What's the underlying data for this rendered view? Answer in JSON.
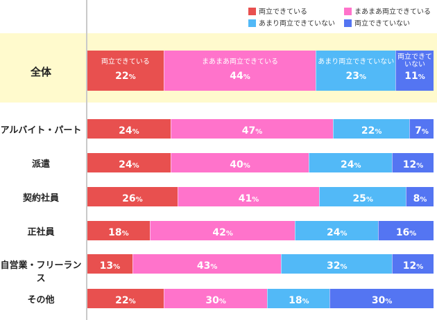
{
  "legend": [
    {
      "name": "両立できている",
      "color": "#e8504f"
    },
    {
      "name": "まあまあ両立できている",
      "color": "#ff73cb"
    },
    {
      "name": "あまり両立できていない",
      "color": "#52b9f7"
    },
    {
      "name": "両立できていない",
      "color": "#5475f2"
    }
  ],
  "chart_data": {
    "type": "bar",
    "orientation": "horizontal",
    "stacked": true,
    "unit": "%",
    "xlim": [
      0,
      100
    ],
    "categories": [
      "全体",
      "アルバイト・パート",
      "派遣",
      "契約社員",
      "正社員",
      "自営業・フリーランス",
      "その他"
    ],
    "series": [
      {
        "name": "両立できている",
        "values": [
          22,
          24,
          24,
          26,
          18,
          13,
          22
        ]
      },
      {
        "name": "まあまあ両立できている",
        "values": [
          44,
          47,
          40,
          41,
          42,
          43,
          30
        ]
      },
      {
        "name": "あまり両立できていない",
        "values": [
          23,
          22,
          24,
          25,
          24,
          32,
          18
        ]
      },
      {
        "name": "両立できていない",
        "values": [
          11,
          7,
          12,
          8,
          16,
          12,
          30
        ]
      }
    ],
    "highlight_row": "全体",
    "highlight_color": "#fffacd",
    "highlight_segment_labels": [
      "両立できている",
      "まあまあ両立できている",
      "あまり両立できていない",
      "両立できて\nいない"
    ]
  }
}
